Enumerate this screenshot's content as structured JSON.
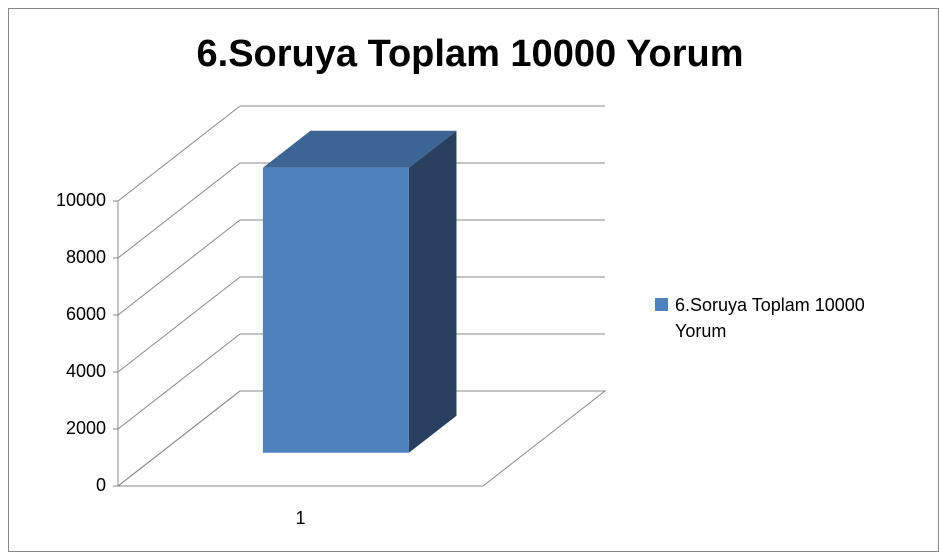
{
  "chart_data": {
    "type": "bar3d",
    "title": "6.Soruya Toplam 10000 Yorum",
    "categories": [
      "1"
    ],
    "series": [
      {
        "name": "6.Soruya Toplam 10000 Yorum",
        "color": "#4f81bd",
        "values": [
          10000
        ]
      }
    ],
    "ylim": [
      0,
      10000
    ],
    "yticks": [
      0,
      2000,
      4000,
      6000,
      8000,
      10000
    ],
    "grid": true,
    "legend": "right"
  }
}
